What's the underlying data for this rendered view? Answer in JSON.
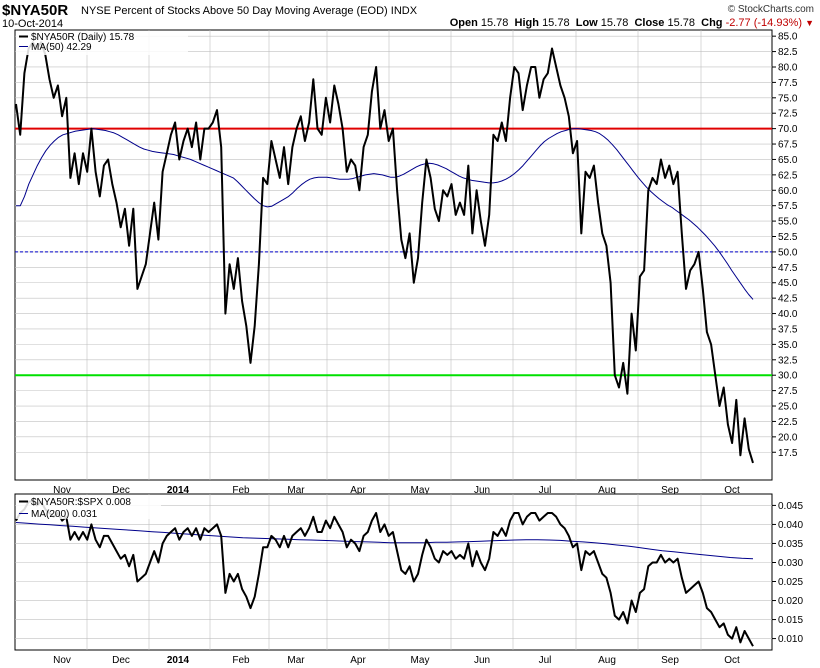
{
  "header": {
    "symbol": "$NYA50R",
    "description": "NYSE Percent of Stocks Above 50 Day Moving Average (EOD)",
    "exchange": "INDX",
    "date": "10-Oct-2014",
    "brand": "© StockCharts.com",
    "open_label": "Open",
    "open": "15.78",
    "high_label": "High",
    "high": "15.78",
    "low_label": "Low",
    "low": "15.78",
    "close_label": "Close",
    "close": "15.78",
    "chg_label": "Chg",
    "chg": "-2.77 (-14.93%)",
    "chg_arrow": "▼"
  },
  "colors": {
    "price": "#000000",
    "ma": "#00008b",
    "upper_line": "#e00000",
    "lower_line": "#00e000",
    "mid_line": "#0000c8",
    "grid": "#c0c0c0"
  },
  "chart_data": [
    {
      "type": "line",
      "panel": "top",
      "x_labels": [
        "Nov",
        "Dec",
        "2014",
        "Feb",
        "Mar",
        "Apr",
        "May",
        "Jun",
        "Jul",
        "Aug",
        "Sep",
        "Oct"
      ],
      "ylim": [
        13,
        86
      ],
      "yticks": [
        17.5,
        20.0,
        22.5,
        25.0,
        27.5,
        30.0,
        32.5,
        35.0,
        37.5,
        40.0,
        42.5,
        45.0,
        47.5,
        50.0,
        52.5,
        55.0,
        57.5,
        60.0,
        62.5,
        65.0,
        67.5,
        70.0,
        72.5,
        75.0,
        77.5,
        80.0,
        82.5,
        85.0
      ],
      "reference_lines": [
        {
          "value": 70,
          "style": "solid",
          "color": "red"
        },
        {
          "value": 50,
          "style": "dashed",
          "color": "blue"
        },
        {
          "value": 30,
          "style": "solid",
          "color": "green"
        }
      ],
      "series": [
        {
          "name": "$NYA50R (Daily) 15.78",
          "color": "black",
          "values": [
            74,
            69,
            79,
            83,
            84,
            83,
            84,
            82,
            78,
            75,
            77,
            72,
            75,
            62,
            66,
            61,
            66,
            63,
            70,
            63,
            59,
            64,
            65,
            61,
            58,
            54,
            57,
            51,
            57,
            44,
            46,
            48,
            53,
            58,
            52,
            63,
            66,
            69,
            71,
            65,
            68,
            70,
            67,
            71,
            65,
            70,
            70,
            71,
            73,
            67,
            40,
            48,
            44,
            49,
            42,
            38,
            32,
            38,
            48,
            62,
            61,
            68,
            65,
            62,
            67,
            61,
            67,
            70,
            72,
            68,
            71,
            78,
            70,
            69,
            75,
            71,
            77,
            74,
            70,
            63,
            65,
            64,
            60,
            67,
            69,
            76,
            80,
            70,
            73,
            68,
            70,
            60,
            52,
            49,
            53,
            45,
            49,
            58,
            65,
            62,
            57,
            55,
            60,
            59,
            61,
            56,
            58,
            56,
            64,
            53,
            60,
            55,
            51,
            56,
            69,
            68,
            71,
            68,
            75,
            80,
            79,
            73,
            77,
            80,
            80,
            75,
            78,
            79,
            83,
            80,
            77,
            75,
            72,
            66,
            68,
            53,
            63,
            62,
            64,
            58,
            53,
            51,
            45,
            30,
            28,
            32,
            27,
            40,
            34,
            46,
            47,
            60,
            62,
            61,
            65,
            62,
            64,
            61,
            63,
            53,
            44,
            47,
            48,
            50,
            44,
            37,
            35,
            30,
            25,
            28,
            22,
            19,
            26,
            17,
            23,
            18,
            15.78
          ]
        },
        {
          "name": "MA(50) 42.29",
          "color": "navy",
          "values": [
            57.5,
            57.5,
            59,
            61,
            62.5,
            64,
            65.3,
            66.4,
            67.3,
            68,
            68.6,
            69,
            69.2,
            69.4,
            69.6,
            69.7,
            69.8,
            69.9,
            70,
            69.9,
            69.8,
            69.7,
            69.5,
            69.3,
            69,
            68.6,
            68.2,
            67.8,
            67.4,
            67,
            66.7,
            66.5,
            66.3,
            66.2,
            66.1,
            66,
            65.9,
            65.8,
            65.6,
            65.4,
            65.2,
            65,
            64.7,
            64.4,
            64.1,
            63.8,
            63.5,
            63.2,
            62.9,
            62.6,
            62.3,
            62,
            61.4,
            60.7,
            60,
            59.3,
            58.6,
            58,
            57.5,
            57.3,
            57.4,
            57.8,
            58.2,
            58.6,
            59,
            59.6,
            60.3,
            60.9,
            61.4,
            61.8,
            62,
            62.1,
            62.1,
            62.1,
            62,
            61.9,
            61.8,
            61.8,
            61.8,
            61.9,
            62.1,
            62.3,
            62.5,
            62.6,
            62.7,
            62.6,
            62.5,
            62.3,
            62.1,
            62.1,
            62.3,
            62.6,
            63,
            63.4,
            63.8,
            64.1,
            64.3,
            64.4,
            64.3,
            64.1,
            63.8,
            63.5,
            63.1,
            62.7,
            62.3,
            62,
            61.8,
            61.6,
            61.5,
            61.4,
            61.3,
            61.2,
            61.2,
            61.3,
            61.5,
            61.8,
            62.2,
            62.7,
            63.3,
            64,
            64.8,
            65.6,
            66.4,
            67.2,
            67.9,
            68.4,
            68.8,
            69.2,
            69.5,
            69.7,
            69.9,
            70,
            70,
            69.9,
            69.8,
            69.7,
            69.5,
            69.2,
            68.7,
            68.1,
            67.4,
            66.6,
            65.7,
            64.8,
            63.9,
            63,
            62.1,
            61.3,
            60.5,
            59.8,
            59.2,
            58.6,
            58.1,
            57.6,
            57.2,
            56.7,
            56.2,
            55.7,
            55.2,
            54.6,
            54,
            53.3,
            52.6,
            51.8,
            51,
            50.1,
            49.1,
            48.1,
            47,
            46,
            45,
            44,
            43.1,
            42.29
          ]
        }
      ]
    },
    {
      "type": "line",
      "panel": "bottom",
      "x_labels": [
        "Nov",
        "Dec",
        "2014",
        "Feb",
        "Mar",
        "Apr",
        "May",
        "Jun",
        "Jul",
        "Aug",
        "Sep",
        "Oct"
      ],
      "ylim": [
        0.007,
        0.048
      ],
      "yticks": [
        0.01,
        0.015,
        0.02,
        0.025,
        0.03,
        0.035,
        0.04,
        0.045
      ],
      "series": [
        {
          "name": "$NYA50R:$SPX 0.008",
          "color": "black",
          "values": [
            0.041,
            0.043,
            0.044,
            0.046,
            0.046,
            0.045,
            0.046,
            0.044,
            0.043,
            0.042,
            0.043,
            0.041,
            0.042,
            0.036,
            0.038,
            0.036,
            0.038,
            0.036,
            0.04,
            0.036,
            0.034,
            0.037,
            0.037,
            0.035,
            0.033,
            0.031,
            0.032,
            0.029,
            0.032,
            0.025,
            0.026,
            0.027,
            0.03,
            0.033,
            0.03,
            0.035,
            0.037,
            0.038,
            0.039,
            0.036,
            0.038,
            0.039,
            0.037,
            0.039,
            0.036,
            0.039,
            0.038,
            0.039,
            0.04,
            0.037,
            0.022,
            0.027,
            0.025,
            0.027,
            0.023,
            0.021,
            0.018,
            0.021,
            0.027,
            0.034,
            0.034,
            0.037,
            0.036,
            0.034,
            0.037,
            0.034,
            0.037,
            0.038,
            0.039,
            0.037,
            0.039,
            0.042,
            0.038,
            0.038,
            0.041,
            0.039,
            0.042,
            0.04,
            0.038,
            0.034,
            0.036,
            0.035,
            0.033,
            0.037,
            0.038,
            0.041,
            0.043,
            0.038,
            0.04,
            0.037,
            0.038,
            0.033,
            0.028,
            0.027,
            0.029,
            0.025,
            0.027,
            0.032,
            0.036,
            0.034,
            0.031,
            0.03,
            0.033,
            0.032,
            0.033,
            0.031,
            0.032,
            0.031,
            0.035,
            0.029,
            0.033,
            0.03,
            0.028,
            0.031,
            0.038,
            0.037,
            0.039,
            0.037,
            0.041,
            0.043,
            0.043,
            0.04,
            0.042,
            0.043,
            0.043,
            0.041,
            0.042,
            0.043,
            0.043,
            0.042,
            0.04,
            0.039,
            0.037,
            0.034,
            0.035,
            0.028,
            0.033,
            0.032,
            0.033,
            0.03,
            0.027,
            0.026,
            0.022,
            0.016,
            0.015,
            0.017,
            0.014,
            0.02,
            0.017,
            0.022,
            0.023,
            0.029,
            0.03,
            0.03,
            0.032,
            0.03,
            0.031,
            0.03,
            0.031,
            0.026,
            0.022,
            0.023,
            0.024,
            0.025,
            0.022,
            0.018,
            0.017,
            0.015,
            0.013,
            0.014,
            0.011,
            0.01,
            0.013,
            0.009,
            0.012,
            0.01,
            0.008
          ]
        },
        {
          "name": "MA(200) 0.031",
          "color": "navy",
          "values": [
            0.0405,
            0.0403,
            0.0401,
            0.0399,
            0.0397,
            0.0395,
            0.0393,
            0.0391,
            0.0389,
            0.0387,
            0.0385,
            0.0383,
            0.0381,
            0.0379,
            0.0377,
            0.0375,
            0.0373,
            0.0371,
            0.0369,
            0.0367,
            0.0365,
            0.0364,
            0.0363,
            0.0362,
            0.0361,
            0.036,
            0.0359,
            0.0358,
            0.0357,
            0.0356,
            0.0355,
            0.0354,
            0.0353,
            0.0352,
            0.0352,
            0.0352,
            0.0352,
            0.0353,
            0.0353,
            0.0354,
            0.0355,
            0.0356,
            0.0357,
            0.0358,
            0.0359,
            0.036,
            0.036,
            0.0359,
            0.0358,
            0.0356,
            0.0354,
            0.0352,
            0.0349,
            0.0346,
            0.0343,
            0.0339,
            0.0335,
            0.0331,
            0.0328,
            0.0325,
            0.0322,
            0.0319,
            0.0316,
            0.0313,
            0.0311,
            0.031
          ]
        }
      ]
    }
  ]
}
